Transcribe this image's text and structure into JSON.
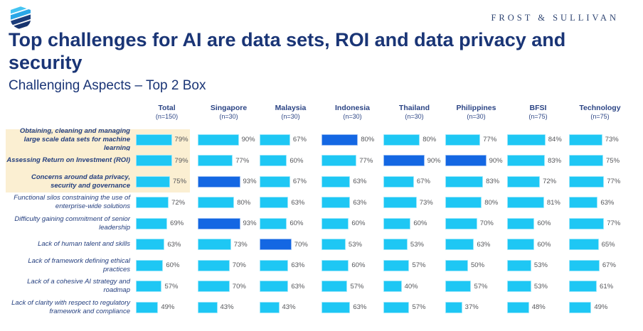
{
  "header": {
    "brand": "FROST & SULLIVAN",
    "title": "Top challenges for AI are data sets, ROI and data privacy and security",
    "subtitle": "Challenging Aspects – Top 2 Box"
  },
  "icons": {
    "logo": "shield-stripes-logo"
  },
  "colors": {
    "title_navy": "#1A3576",
    "header_navy": "#2B4484",
    "bar_cyan": "#1EC7F4",
    "bar_dark_blue": "#1467E3",
    "row_highlight_bg": "#FBEFD2",
    "value_text": "#55565A"
  },
  "chart_data": {
    "type": "bar",
    "orientation": "horizontal",
    "unit": "%",
    "value_range": [
      0,
      100
    ],
    "title": "Challenging Aspects – Top 2 Box",
    "categories": [
      "Obtaining, cleaning and managing large scale data sets for machine learning",
      "Assessing Return on Investment (ROI)",
      "Concerns around data privacy, security and governance",
      "Functional silos constraining the use of enterprise-wide solutions",
      "Difficulty gaining commitment of senior leadership",
      "Lack of human talent and skills",
      "Lack of framework defining ethical practices",
      "Lack of a cohesive AI strategy and roadmap",
      "Lack of clarity with respect to regulatory framework and compliance"
    ],
    "emphasized_category_indices": [
      0,
      1,
      2
    ],
    "series": [
      {
        "name": "Total",
        "n": "(n=150)",
        "values": [
          79,
          79,
          75,
          72,
          69,
          63,
          60,
          57,
          49
        ]
      },
      {
        "name": "Singapore",
        "n": "(n=30)",
        "values": [
          90,
          77,
          93,
          80,
          93,
          73,
          70,
          70,
          43
        ]
      },
      {
        "name": "Malaysia",
        "n": "(n=30)",
        "values": [
          67,
          60,
          67,
          63,
          60,
          70,
          63,
          63,
          43
        ]
      },
      {
        "name": "Indonesia",
        "n": "(n=30)",
        "values": [
          80,
          77,
          63,
          63,
          60,
          53,
          60,
          57,
          63
        ]
      },
      {
        "name": "Thailand",
        "n": "(n=30)",
        "values": [
          80,
          90,
          67,
          73,
          60,
          53,
          57,
          40,
          57
        ]
      },
      {
        "name": "Philippines",
        "n": "(n=30)",
        "values": [
          77,
          90,
          83,
          80,
          70,
          63,
          50,
          57,
          37
        ]
      },
      {
        "name": "BFSI",
        "n": "(n=75)",
        "values": [
          84,
          83,
          72,
          81,
          60,
          60,
          53,
          53,
          48
        ]
      },
      {
        "name": "Technology",
        "n": "(n=75)",
        "values": [
          73,
          75,
          77,
          63,
          77,
          65,
          67,
          61,
          49
        ]
      }
    ],
    "dark_highlight_cells": [
      {
        "row": 0,
        "series": 3
      },
      {
        "row": 1,
        "series": 4
      },
      {
        "row": 1,
        "series": 5
      },
      {
        "row": 2,
        "series": 1
      },
      {
        "row": 4,
        "series": 1
      },
      {
        "row": 5,
        "series": 2
      }
    ]
  }
}
